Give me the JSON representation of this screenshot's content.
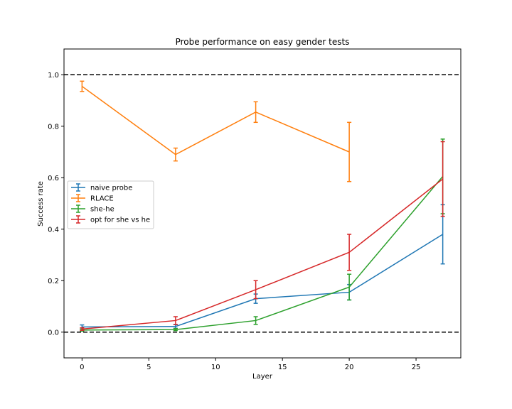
{
  "chart_data": {
    "type": "line",
    "title": "Probe performance on easy gender tests",
    "xlabel": "Layer",
    "ylabel": "Success rate",
    "xlim": [
      -1.35,
      28.35
    ],
    "ylim": [
      -0.1,
      1.1
    ],
    "xticks": [
      0,
      5,
      10,
      15,
      20,
      25
    ],
    "yticks": [
      0.0,
      0.2,
      0.4,
      0.6,
      0.8,
      1.0
    ],
    "xtick_labels": [
      "0",
      "5",
      "10",
      "15",
      "20",
      "25"
    ],
    "ytick_labels": [
      "0.0",
      "0.2",
      "0.4",
      "0.6",
      "0.8",
      "1.0"
    ],
    "hlines": [
      0.0,
      1.0
    ],
    "grid": false,
    "legend_position": "center-left",
    "series": [
      {
        "name": "naive probe",
        "color": "#1f77b4",
        "x": [
          0,
          7,
          13,
          20,
          27
        ],
        "y": [
          0.02,
          0.022,
          0.13,
          0.155,
          0.38
        ],
        "err": [
          0.008,
          0.007,
          0.018,
          0.03,
          0.115
        ]
      },
      {
        "name": "RLACE",
        "color": "#ff7f0e",
        "x": [
          0,
          7,
          13,
          20
        ],
        "y": [
          0.955,
          0.69,
          0.855,
          0.7
        ],
        "err": [
          0.02,
          0.025,
          0.04,
          0.115
        ]
      },
      {
        "name": "she-he",
        "color": "#2ca02c",
        "x": [
          0,
          7,
          13,
          20,
          27
        ],
        "y": [
          0.008,
          0.01,
          0.045,
          0.175,
          0.605
        ],
        "err": [
          0.004,
          0.004,
          0.015,
          0.05,
          0.145
        ]
      },
      {
        "name": "opt for she vs he",
        "color": "#d62728",
        "x": [
          0,
          7,
          13,
          20,
          27
        ],
        "y": [
          0.012,
          0.045,
          0.165,
          0.31,
          0.595
        ],
        "err": [
          0.005,
          0.015,
          0.035,
          0.07,
          0.145
        ]
      }
    ]
  }
}
